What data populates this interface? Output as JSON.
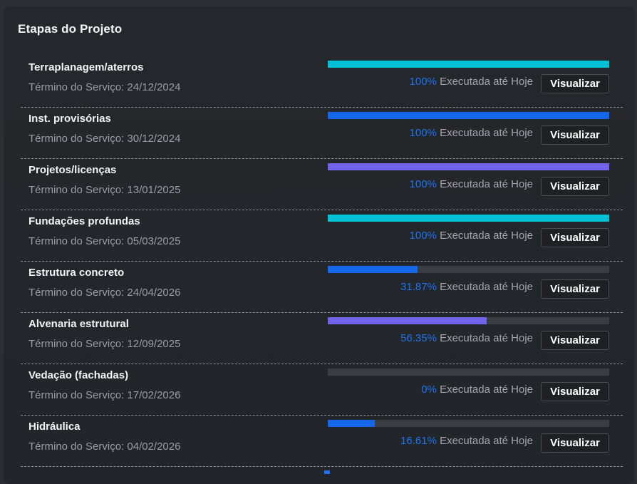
{
  "panel": {
    "title": "Etapas do Projeto"
  },
  "colors": {
    "cyan": "#00c2d6",
    "blue": "#1566e8",
    "violet": "#7164ea",
    "percent_text": "#1e74f0",
    "track": "#3a3d42"
  },
  "button_label": "Visualizar",
  "status_suffix": "Executada até Hoje",
  "stages": [
    {
      "name": "Terraplanagem/aterros",
      "date_text": "Término do Serviço: 24/12/2024",
      "percent_text": "100%",
      "progress": 1.0,
      "color": "cyan"
    },
    {
      "name": "Inst. provisórias",
      "date_text": "Término do Serviço: 30/12/2024",
      "percent_text": "100%",
      "progress": 1.0,
      "color": "blue"
    },
    {
      "name": "Projetos/licenças",
      "date_text": "Término do Serviço: 13/01/2025",
      "percent_text": "100%",
      "progress": 1.0,
      "color": "violet"
    },
    {
      "name": "Fundações profundas",
      "date_text": "Término do Serviço: 05/03/2025",
      "percent_text": "100%",
      "progress": 1.0,
      "color": "cyan"
    },
    {
      "name": "Estrutura concreto",
      "date_text": "Término do Serviço: 24/04/2026",
      "percent_text": "31.87%",
      "progress": 0.3187,
      "color": "blue"
    },
    {
      "name": "Alvenaria estrutural",
      "date_text": "Término do Serviço: 12/09/2025",
      "percent_text": "56.35%",
      "progress": 0.5635,
      "color": "violet"
    },
    {
      "name": "Vedação (fachadas)",
      "date_text": "Término do Serviço: 17/02/2026",
      "percent_text": "0%",
      "progress": 0,
      "color": "cyan"
    },
    {
      "name": "Hidráulica",
      "date_text": "Término do Serviço: 04/02/2026",
      "percent_text": "16.61%",
      "progress": 0.1661,
      "color": "blue"
    }
  ]
}
